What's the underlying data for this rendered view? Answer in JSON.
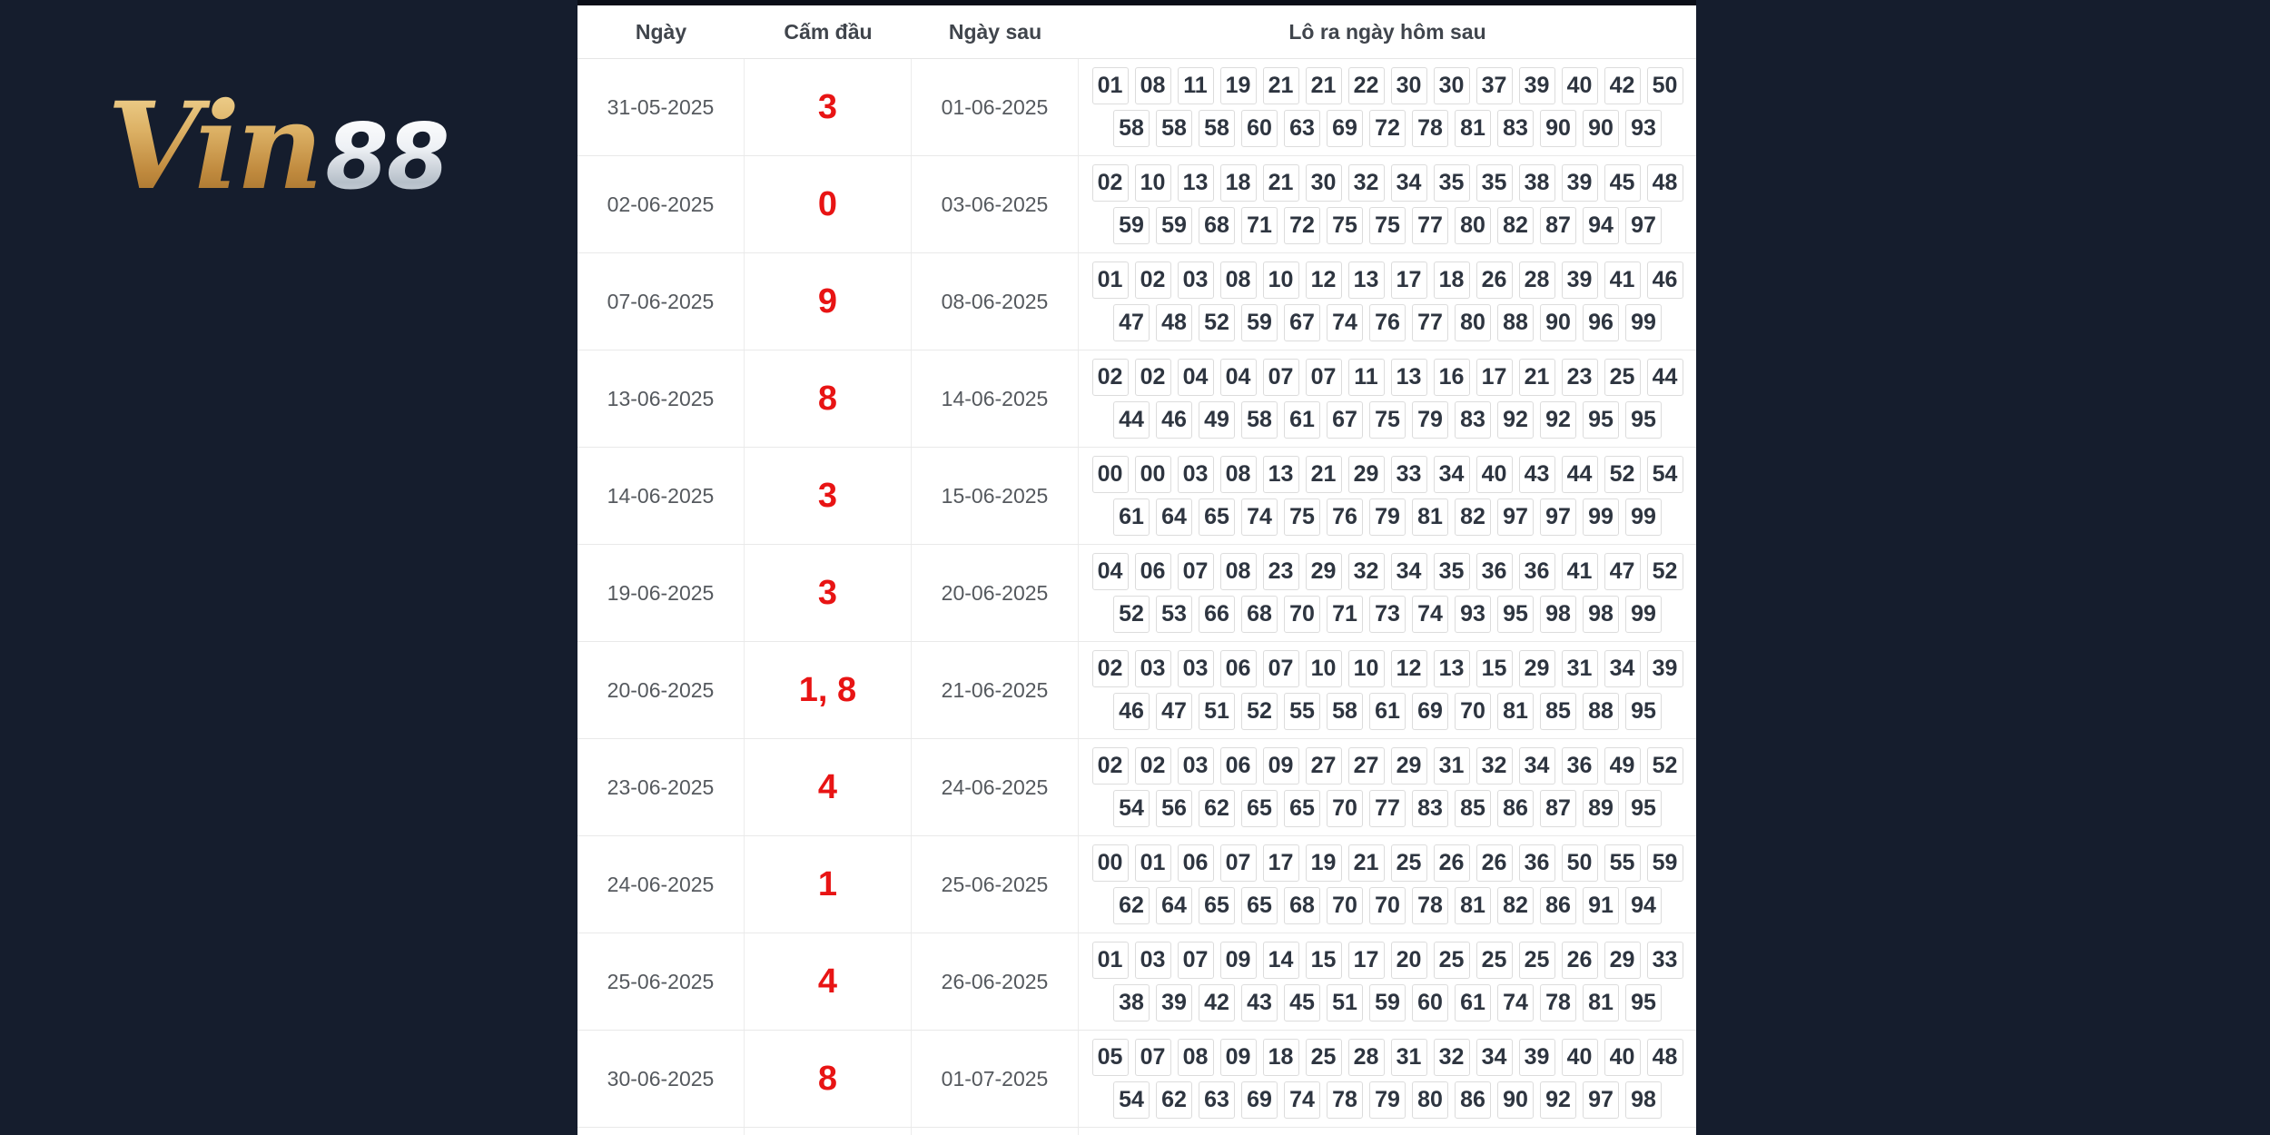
{
  "colors": {
    "page_background": "#151d2d",
    "banned_red": "#e81414",
    "table_background": "#ffffff",
    "logo_gold": "#c08a3e",
    "logo_silver": "#d3dae1"
  },
  "logo": {
    "part1": "Vin",
    "part2": "88"
  },
  "table": {
    "headers": [
      "Ngày",
      "Cấm đầu",
      "Ngày sau",
      "Lô ra ngày hôm sau"
    ],
    "rows": [
      {
        "date": "31-05-2025",
        "banned": "3",
        "next_date": "01-06-2025",
        "line1": [
          "01",
          "08",
          "11",
          "19",
          "21",
          "21",
          "22",
          "30",
          "30",
          "37",
          "39",
          "40",
          "42",
          "50"
        ],
        "line2": [
          "58",
          "58",
          "58",
          "60",
          "63",
          "69",
          "72",
          "78",
          "81",
          "83",
          "90",
          "90",
          "93"
        ]
      },
      {
        "date": "02-06-2025",
        "banned": "0",
        "next_date": "03-06-2025",
        "line1": [
          "02",
          "10",
          "13",
          "18",
          "21",
          "30",
          "32",
          "34",
          "35",
          "35",
          "38",
          "39",
          "45",
          "48"
        ],
        "line2": [
          "59",
          "59",
          "68",
          "71",
          "72",
          "75",
          "75",
          "77",
          "80",
          "82",
          "87",
          "94",
          "97"
        ]
      },
      {
        "date": "07-06-2025",
        "banned": "9",
        "next_date": "08-06-2025",
        "line1": [
          "01",
          "02",
          "03",
          "08",
          "10",
          "12",
          "13",
          "17",
          "18",
          "26",
          "28",
          "39",
          "41",
          "46"
        ],
        "line2": [
          "47",
          "48",
          "52",
          "59",
          "67",
          "74",
          "76",
          "77",
          "80",
          "88",
          "90",
          "96",
          "99"
        ]
      },
      {
        "date": "13-06-2025",
        "banned": "8",
        "next_date": "14-06-2025",
        "line1": [
          "02",
          "02",
          "04",
          "04",
          "07",
          "07",
          "11",
          "13",
          "16",
          "17",
          "21",
          "23",
          "25",
          "44"
        ],
        "line2": [
          "44",
          "46",
          "49",
          "58",
          "61",
          "67",
          "75",
          "79",
          "83",
          "92",
          "92",
          "95",
          "95"
        ]
      },
      {
        "date": "14-06-2025",
        "banned": "3",
        "next_date": "15-06-2025",
        "line1": [
          "00",
          "00",
          "03",
          "08",
          "13",
          "21",
          "29",
          "33",
          "34",
          "40",
          "43",
          "44",
          "52",
          "54"
        ],
        "line2": [
          "61",
          "64",
          "65",
          "74",
          "75",
          "76",
          "79",
          "81",
          "82",
          "97",
          "97",
          "99",
          "99"
        ]
      },
      {
        "date": "19-06-2025",
        "banned": "3",
        "next_date": "20-06-2025",
        "line1": [
          "04",
          "06",
          "07",
          "08",
          "23",
          "29",
          "32",
          "34",
          "35",
          "36",
          "36",
          "41",
          "47",
          "52"
        ],
        "line2": [
          "52",
          "53",
          "66",
          "68",
          "70",
          "71",
          "73",
          "74",
          "93",
          "95",
          "98",
          "98",
          "99"
        ]
      },
      {
        "date": "20-06-2025",
        "banned": "1, 8",
        "next_date": "21-06-2025",
        "line1": [
          "02",
          "03",
          "03",
          "06",
          "07",
          "10",
          "10",
          "12",
          "13",
          "15",
          "29",
          "31",
          "34",
          "39"
        ],
        "line2": [
          "46",
          "47",
          "51",
          "52",
          "55",
          "58",
          "61",
          "69",
          "70",
          "81",
          "85",
          "88",
          "95"
        ]
      },
      {
        "date": "23-06-2025",
        "banned": "4",
        "next_date": "24-06-2025",
        "line1": [
          "02",
          "02",
          "03",
          "06",
          "09",
          "27",
          "27",
          "29",
          "31",
          "32",
          "34",
          "36",
          "49",
          "52"
        ],
        "line2": [
          "54",
          "56",
          "62",
          "65",
          "65",
          "70",
          "77",
          "83",
          "85",
          "86",
          "87",
          "89",
          "95"
        ]
      },
      {
        "date": "24-06-2025",
        "banned": "1",
        "next_date": "25-06-2025",
        "line1": [
          "00",
          "01",
          "06",
          "07",
          "17",
          "19",
          "21",
          "25",
          "26",
          "26",
          "36",
          "50",
          "55",
          "59"
        ],
        "line2": [
          "62",
          "64",
          "65",
          "65",
          "68",
          "70",
          "70",
          "78",
          "81",
          "82",
          "86",
          "91",
          "94"
        ]
      },
      {
        "date": "25-06-2025",
        "banned": "4",
        "next_date": "26-06-2025",
        "line1": [
          "01",
          "03",
          "07",
          "09",
          "14",
          "15",
          "17",
          "20",
          "25",
          "25",
          "25",
          "26",
          "29",
          "33"
        ],
        "line2": [
          "38",
          "39",
          "42",
          "43",
          "45",
          "51",
          "59",
          "60",
          "61",
          "74",
          "78",
          "81",
          "95"
        ]
      },
      {
        "date": "30-06-2025",
        "banned": "8",
        "next_date": "01-07-2025",
        "line1": [
          "05",
          "07",
          "08",
          "09",
          "18",
          "25",
          "28",
          "31",
          "32",
          "34",
          "39",
          "40",
          "40",
          "48"
        ],
        "line2": [
          "54",
          "62",
          "63",
          "69",
          "74",
          "78",
          "79",
          "80",
          "86",
          "90",
          "92",
          "97",
          "98"
        ]
      }
    ]
  }
}
